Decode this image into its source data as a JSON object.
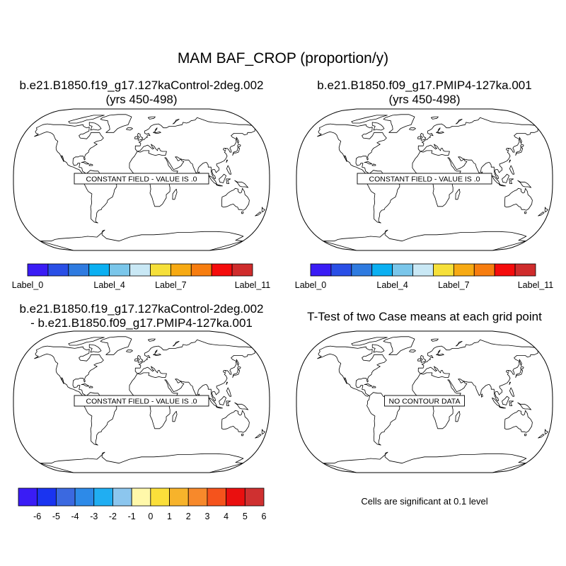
{
  "title": "MAM BAF_CROP (proportion/y)",
  "panels": [
    {
      "title_line1": "b.e21.B1850.f19_g17.127kaControl-2deg.002",
      "title_line2": "(yrs 450-498)",
      "annotation": "CONSTANT FIELD - VALUE IS .0"
    },
    {
      "title_line1": "b.e21.B1850.f09_g17.PMIP4-127ka.001",
      "title_line2": "(yrs 450-498)",
      "annotation": "CONSTANT FIELD - VALUE IS .0"
    },
    {
      "title_line1": "b.e21.B1850.f19_g17.127kaControl-2deg.002",
      "title_line2": "- b.e21.B1850.f09_g17.PMIP4-127ka.001",
      "annotation": "CONSTANT FIELD - VALUE IS .0"
    },
    {
      "title_line1": "T-Test of two Case means at each grid point",
      "title_line2": "",
      "annotation": "NO CONTOUR DATA"
    }
  ],
  "colorbar_top": {
    "colors": [
      "#3a1cf5",
      "#2a4fe6",
      "#2f7be0",
      "#0bb0f2",
      "#7ac6ea",
      "#c9e8f5",
      "#f6e03a",
      "#f7aa13",
      "#f77d0f",
      "#f50c0c",
      "#cf2c2c"
    ],
    "labels": [
      {
        "text": "Label_0",
        "boundary": 0
      },
      {
        "text": "Label_4",
        "boundary": 4
      },
      {
        "text": "Label_7",
        "boundary": 7
      },
      {
        "text": "Label_11",
        "boundary": 11
      }
    ]
  },
  "colorbar_diff": {
    "colors": [
      "#3a1cf5",
      "#1a34f0",
      "#3b69e0",
      "#2d8ae8",
      "#20aef2",
      "#8cc6ee",
      "#fff8aa",
      "#fbdf3a",
      "#f7b32b",
      "#f7892b",
      "#f5531c",
      "#ea0f0f",
      "#cf3030"
    ],
    "labels": [
      "-6",
      "-5",
      "-4",
      "-3",
      "-2",
      "-1",
      "0",
      "1",
      "2",
      "3",
      "4",
      "5",
      "6"
    ]
  },
  "significance_note": "Cells are significant at 0.1 level"
}
